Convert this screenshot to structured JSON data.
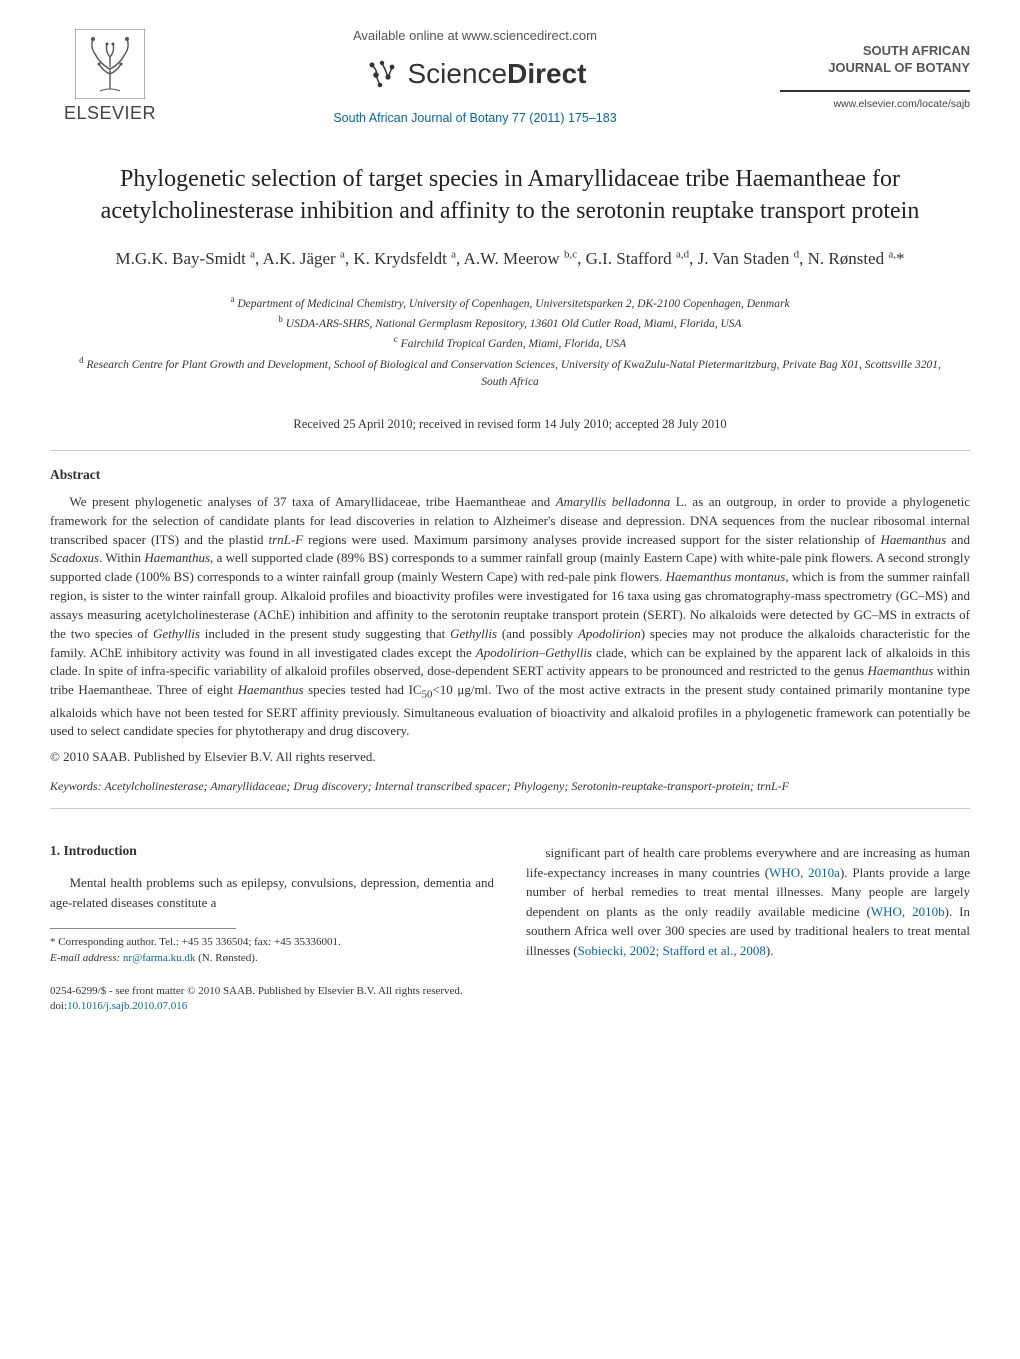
{
  "header": {
    "available_text": "Available online at www.sciencedirect.com",
    "sd_label_light": "Science",
    "sd_label_bold": "Direct",
    "elsevier_text": "ELSEVIER",
    "journal_citation": "South African Journal of Botany 77 (2011) 175–183",
    "journal_name_line1": "SOUTH AFRICAN",
    "journal_name_line2": "JOURNAL OF BOTANY",
    "journal_url": "www.elsevier.com/locate/sajb"
  },
  "title": "Phylogenetic selection of target species in Amaryllidaceae tribe Haemantheae for acetylcholinesterase inhibition and affinity to the serotonin reuptake transport protein",
  "authors_html": "M.G.K. Bay-Smidt <span class=\"author-sup\">a</span>, A.K. Jäger <span class=\"author-sup\">a</span>, K. Krydsfeldt <span class=\"author-sup\">a</span>, A.W. Meerow <span class=\"author-sup\">b,c</span>, G.I. Stafford <span class=\"author-sup\">a,d</span>, J. Van Staden <span class=\"author-sup\">d</span>, N. Rønsted <span class=\"author-sup\">a,</span>*",
  "affiliations": [
    {
      "sup": "a",
      "text": "Department of Medicinal Chemistry, University of Copenhagen, Universitetsparken 2, DK-2100 Copenhagen, Denmark"
    },
    {
      "sup": "b",
      "text": "USDA-ARS-SHRS, National Germplasm Repository, 13601 Old Cutler Road, Miami, Florida, USA"
    },
    {
      "sup": "c",
      "text": "Fairchild Tropical Garden, Miami, Florida, USA"
    },
    {
      "sup": "d",
      "text": "Research Centre for Plant Growth and Development, School of Biological and Conservation Sciences, University of KwaZulu-Natal Pietermaritzburg, Private Bag X01, Scottsville 3201, South Africa"
    }
  ],
  "received": "Received 25 April 2010; received in revised form 14 July 2010; accepted 28 July 2010",
  "abstract_heading": "Abstract",
  "abstract_html": "We present phylogenetic analyses of 37 taxa of Amaryllidaceae, tribe Haemantheae and <i>Amaryllis belladonna</i> L. as an outgroup, in order to provide a phylogenetic framework for the selection of candidate plants for lead discoveries in relation to Alzheimer's disease and depression. DNA sequences from the nuclear ribosomal internal transcribed spacer (ITS) and the plastid <i>trnL-F</i> regions were used. Maximum parsimony analyses provide increased support for the sister relationship of <i>Haemanthus</i> and <i>Scadoxus</i>. Within <i>Haemanthus</i>, a well supported clade (89% BS) corresponds to a summer rainfall group (mainly Eastern Cape) with white-pale pink flowers. A second strongly supported clade (100% BS) corresponds to a winter rainfall group (mainly Western Cape) with red-pale pink flowers. <i>Haemanthus montanus</i>, which is from the summer rainfall region, is sister to the winter rainfall group. Alkaloid profiles and bioactivity profiles were investigated for 16 taxa using gas chromatography-mass spectrometry (GC–MS) and assays measuring acetylcholinesterase (AChE) inhibition and affinity to the serotonin reuptake transport protein (SERT). No alkaloids were detected by GC–MS in extracts of the two species of <i>Gethyllis</i> included in the present study suggesting that <i>Gethyllis</i> (and possibly <i>Apodolirion</i>) species may not produce the alkaloids characteristic for the family. AChE inhibitory activity was found in all investigated clades except the <i>Apodolirion–Gethyllis</i> clade, which can be explained by the apparent lack of alkaloids in this clade. In spite of infra-specific variability of alkaloid profiles observed, dose-dependent SERT activity appears to be pronounced and restricted to the genus <i>Haemanthus</i> within tribe Haemantheae. Three of eight <i>Haemanthus</i> species tested had IC<sub>50</sub>&lt;10 μg/ml. Two of the most active extracts in the present study contained primarily montanine type alkaloids which have not been tested for SERT affinity previously. Simultaneous evaluation of bioactivity and alkaloid profiles in a phylogenetic framework can potentially be used to select candidate species for phytotherapy and drug discovery.",
  "copyright": "© 2010 SAAB. Published by Elsevier B.V. All rights reserved.",
  "keywords_label": "Keywords:",
  "keywords_text": "Acetylcholinesterase; Amaryllidaceae; Drug discovery; Internal transcribed spacer; Phylogeny; Serotonin-reuptake-transport-protein; trnL-F",
  "intro_heading": "1. Introduction",
  "intro_left_html": "Mental health problems such as epilepsy, convulsions, depression, dementia and age-related diseases constitute a",
  "intro_right_html": "significant part of health care problems everywhere and are increasing as human life-expectancy increases in many countries (<span class=\"cite-link\">WHO, 2010a</span>). Plants provide a large number of herbal remedies to treat mental illnesses. Many people are largely dependent on plants as the only readily available medicine (<span class=\"cite-link\">WHO, 2010b</span>). In southern Africa well over 300 species are used by traditional healers to treat mental illnesses (<span class=\"cite-link\">Sobiecki, 2002; Stafford et al., 2008</span>).",
  "footnote": {
    "corresponding": "* Corresponding author. Tel.: +45 35 336504; fax: +45 35336001.",
    "email_label": "E-mail address:",
    "email": "nr@farma.ku.dk",
    "email_suffix": "(N. Rønsted)."
  },
  "bottom": {
    "line1": "0254-6299/$ - see front matter © 2010 SAAB. Published by Elsevier B.V. All rights reserved.",
    "doi_label": "doi:",
    "doi": "10.1016/j.sajb.2010.07.016"
  }
}
